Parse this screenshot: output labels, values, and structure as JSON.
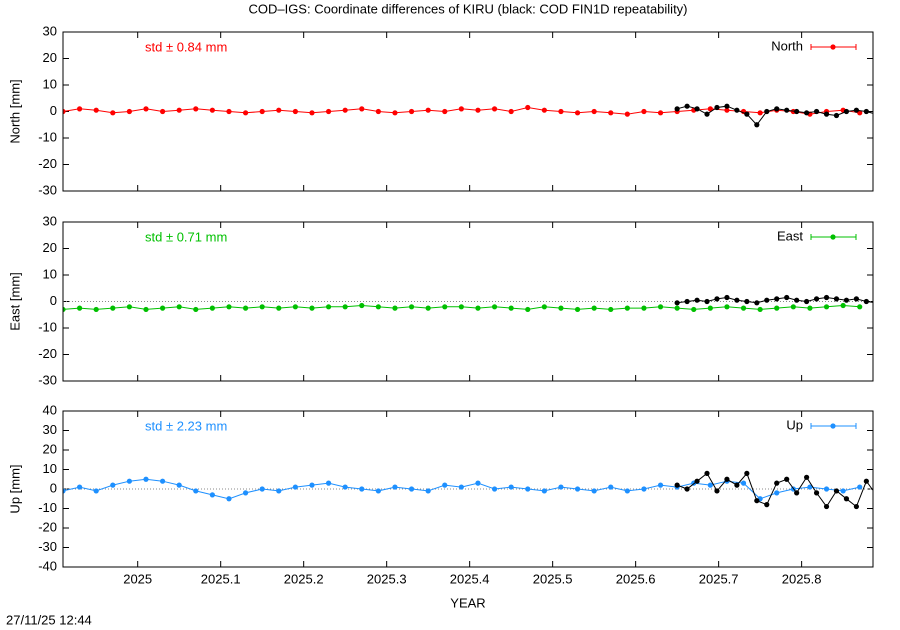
{
  "title": "COD–IGS: Coordinate differences of KIRU (black: COD FIN1D repeatability)",
  "timestamp": "27/11/25 12:44",
  "xlabel": "YEAR",
  "xlim": [
    2024.91,
    2025.886
  ],
  "xticks": [
    2025,
    2025.1,
    2025.2,
    2025.3,
    2025.4,
    2025.5,
    2025.6,
    2025.7,
    2025.8
  ],
  "chart_data": [
    {
      "type": "line",
      "ylabel": "North [mm]",
      "annotation": "std ± 0.84 mm",
      "ylim": [
        -30,
        30
      ],
      "yticks": [
        -30,
        -20,
        -10,
        0,
        10,
        20,
        30
      ],
      "zero_line": false,
      "series": [
        {
          "name": "North",
          "color": "#ff0000",
          "x": [
            2024.91,
            2024.93,
            2024.95,
            2024.97,
            2024.99,
            2025.01,
            2025.03,
            2025.05,
            2025.07,
            2025.09,
            2025.11,
            2025.13,
            2025.15,
            2025.17,
            2025.19,
            2025.21,
            2025.23,
            2025.25,
            2025.27,
            2025.29,
            2025.31,
            2025.33,
            2025.35,
            2025.37,
            2025.39,
            2025.41,
            2025.43,
            2025.45,
            2025.47,
            2025.49,
            2025.51,
            2025.53,
            2025.55,
            2025.57,
            2025.59,
            2025.61,
            2025.63,
            2025.65,
            2025.67,
            2025.69,
            2025.71,
            2025.73,
            2025.75,
            2025.77,
            2025.79,
            2025.81,
            2025.83,
            2025.85,
            2025.87
          ],
          "values": [
            0,
            1,
            0.5,
            -0.5,
            0,
            1,
            0,
            0.5,
            1,
            0.5,
            0,
            -0.5,
            0,
            0.5,
            0,
            -0.5,
            0,
            0.5,
            1,
            0,
            -0.5,
            0,
            0.5,
            0,
            1,
            0.5,
            1,
            0,
            1.5,
            0.5,
            0,
            -0.5,
            0,
            -0.5,
            -1,
            0,
            -0.5,
            0,
            0.5,
            1,
            0.5,
            0,
            -0.5,
            0.5,
            0,
            -1,
            0,
            0.5,
            -0.5
          ]
        },
        {
          "color": "#000000",
          "x": [
            2025.65,
            2025.662,
            2025.674,
            2025.686,
            2025.698,
            2025.71,
            2025.722,
            2025.734,
            2025.746,
            2025.758,
            2025.77,
            2025.782,
            2025.794,
            2025.806,
            2025.818,
            2025.83,
            2025.842,
            2025.854,
            2025.866,
            2025.878,
            2025.89
          ],
          "values": [
            1,
            2,
            1,
            -1,
            1.5,
            2,
            0.5,
            -1,
            -5,
            0,
            1,
            0.5,
            0,
            -0.5,
            0,
            -1,
            -1.5,
            0,
            0.5,
            0,
            -1
          ]
        }
      ]
    },
    {
      "type": "line",
      "ylabel": "East [mm]",
      "annotation": "std ± 0.71 mm",
      "ylim": [
        -30,
        30
      ],
      "yticks": [
        -30,
        -20,
        -10,
        0,
        10,
        20,
        30
      ],
      "zero_line": true,
      "series": [
        {
          "name": "East",
          "color": "#00c000",
          "x": [
            2024.91,
            2024.93,
            2024.95,
            2024.97,
            2024.99,
            2025.01,
            2025.03,
            2025.05,
            2025.07,
            2025.09,
            2025.11,
            2025.13,
            2025.15,
            2025.17,
            2025.19,
            2025.21,
            2025.23,
            2025.25,
            2025.27,
            2025.29,
            2025.31,
            2025.33,
            2025.35,
            2025.37,
            2025.39,
            2025.41,
            2025.43,
            2025.45,
            2025.47,
            2025.49,
            2025.51,
            2025.53,
            2025.55,
            2025.57,
            2025.59,
            2025.61,
            2025.63,
            2025.65,
            2025.67,
            2025.69,
            2025.71,
            2025.73,
            2025.75,
            2025.77,
            2025.79,
            2025.81,
            2025.83,
            2025.85,
            2025.87
          ],
          "values": [
            -3,
            -2.5,
            -3,
            -2.5,
            -2,
            -3,
            -2.5,
            -2,
            -3,
            -2.5,
            -2,
            -2.5,
            -2,
            -2.5,
            -2,
            -2.5,
            -2,
            -2,
            -1.5,
            -2,
            -2.5,
            -2,
            -2.5,
            -2,
            -2,
            -2.5,
            -2,
            -2.5,
            -3,
            -2,
            -2.5,
            -3,
            -2.5,
            -3,
            -2.5,
            -2.5,
            -2,
            -2.5,
            -3,
            -2.5,
            -2,
            -2.5,
            -3,
            -2.5,
            -2,
            -2.5,
            -2,
            -1.5,
            -2
          ]
        },
        {
          "color": "#000000",
          "x": [
            2025.65,
            2025.662,
            2025.674,
            2025.686,
            2025.698,
            2025.71,
            2025.722,
            2025.734,
            2025.746,
            2025.758,
            2025.77,
            2025.782,
            2025.794,
            2025.806,
            2025.818,
            2025.83,
            2025.842,
            2025.854,
            2025.866,
            2025.878,
            2025.89
          ],
          "values": [
            -0.5,
            0,
            0.5,
            0,
            1,
            1.5,
            0.5,
            0,
            -0.5,
            0.5,
            1,
            1.5,
            0.5,
            0,
            1,
            1.5,
            1,
            0.5,
            1,
            0,
            -0.5
          ]
        }
      ]
    },
    {
      "type": "line",
      "ylabel": "Up [mm]",
      "annotation": "std ± 2.23 mm",
      "ylim": [
        -40,
        40
      ],
      "yticks": [
        -40,
        -30,
        -20,
        -10,
        0,
        10,
        20,
        30,
        40
      ],
      "zero_line": true,
      "series": [
        {
          "name": "Up",
          "color": "#1e90ff",
          "x": [
            2024.91,
            2024.93,
            2024.95,
            2024.97,
            2024.99,
            2025.01,
            2025.03,
            2025.05,
            2025.07,
            2025.09,
            2025.11,
            2025.13,
            2025.15,
            2025.17,
            2025.19,
            2025.21,
            2025.23,
            2025.25,
            2025.27,
            2025.29,
            2025.31,
            2025.33,
            2025.35,
            2025.37,
            2025.39,
            2025.41,
            2025.43,
            2025.45,
            2025.47,
            2025.49,
            2025.51,
            2025.53,
            2025.55,
            2025.57,
            2025.59,
            2025.61,
            2025.63,
            2025.65,
            2025.67,
            2025.69,
            2025.71,
            2025.73,
            2025.75,
            2025.77,
            2025.79,
            2025.81,
            2025.83,
            2025.85,
            2025.87
          ],
          "values": [
            -1,
            1,
            -1,
            2,
            4,
            5,
            4,
            2,
            -1,
            -3,
            -5,
            -2,
            0,
            -1,
            1,
            2,
            3,
            1,
            0,
            -1,
            1,
            0,
            -1,
            2,
            1,
            3,
            0,
            1,
            0,
            -1,
            1,
            0,
            -1,
            1,
            -1,
            0,
            2,
            1,
            3,
            2,
            4,
            3,
            -5,
            -2,
            0,
            1,
            0,
            -1,
            1
          ]
        },
        {
          "color": "#000000",
          "x": [
            2025.65,
            2025.662,
            2025.674,
            2025.686,
            2025.698,
            2025.71,
            2025.722,
            2025.734,
            2025.746,
            2025.758,
            2025.77,
            2025.782,
            2025.794,
            2025.806,
            2025.818,
            2025.83,
            2025.842,
            2025.854,
            2025.866,
            2025.878,
            2025.89
          ],
          "values": [
            2,
            0,
            4,
            8,
            -1,
            5,
            2,
            8,
            -6,
            -8,
            3,
            5,
            -2,
            6,
            -2,
            -9,
            -1,
            -5,
            -9,
            4,
            -3
          ]
        }
      ]
    }
  ]
}
